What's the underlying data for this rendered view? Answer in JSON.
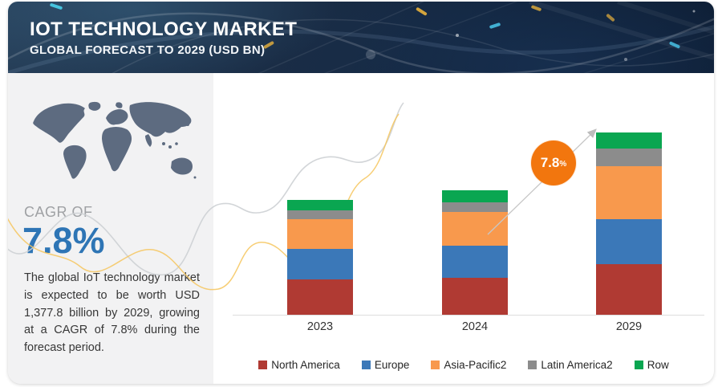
{
  "header": {
    "title": "IOT TECHNOLOGY MARKET",
    "subtitle": "GLOBAL FORECAST TO 2029 (USD BN)"
  },
  "sidebar": {
    "cagr_label": "CAGR OF",
    "cagr_value": "7.8%",
    "description": "The global IoT technology market is expected to be worth USD 1,377.8 billion by 2029, growing at a CAGR of 7.8% during the forecast period.",
    "accent_color": "#2e75b5",
    "map_color": "#5d6b80"
  },
  "growth_badge": {
    "value": "7.8",
    "percent": "%",
    "color": "#f2760e"
  },
  "chart_data": {
    "type": "bar",
    "stacked": true,
    "unit": "USD BN",
    "title": "IoT Technology Market, Global Forecast to 2029 (USD BN)",
    "categories": [
      "2023",
      "2024",
      "2029"
    ],
    "series": [
      {
        "name": "North America",
        "color": "#b03a33",
        "values": [
          267,
          279,
          381.8
        ]
      },
      {
        "name": "Europe",
        "color": "#3b78b8",
        "values": [
          231,
          243,
          340
        ]
      },
      {
        "name": "Asia-Pacific2",
        "color": "#f8994d",
        "values": [
          225,
          255,
          401
        ]
      },
      {
        "name": "Latin America2",
        "color": "#8c8c8c",
        "values": [
          67,
          73,
          134
        ]
      },
      {
        "name": "Row",
        "color": "#0aa651",
        "values": [
          79,
          91,
          121
        ]
      }
    ],
    "totals": [
      869,
      941,
      1377.8
    ],
    "cagr_annotation": "7.8%",
    "ylim": [
      0,
      1450
    ],
    "grid": false,
    "legend_position": "bottom"
  }
}
